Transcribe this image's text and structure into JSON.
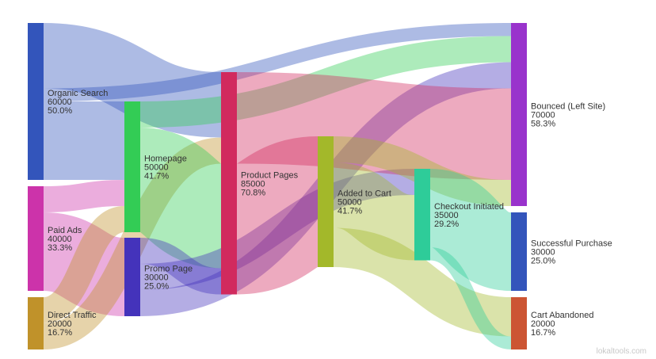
{
  "chart_data": {
    "type": "sankey",
    "nodes": [
      {
        "id": "organic",
        "name": "Organic Search",
        "value": 60000,
        "pct": "50.0%",
        "color": "#3355bb",
        "stage": 0
      },
      {
        "id": "paid",
        "name": "Paid Ads",
        "value": 40000,
        "pct": "33.3%",
        "color": "#cc33aa",
        "stage": 0
      },
      {
        "id": "direct",
        "name": "Direct Traffic",
        "value": 20000,
        "pct": "16.7%",
        "color": "#c0922a",
        "stage": 0
      },
      {
        "id": "home",
        "name": "Homepage",
        "value": 50000,
        "pct": "41.7%",
        "color": "#33cc55",
        "stage": 1
      },
      {
        "id": "promo",
        "name": "Promo Page",
        "value": 30000,
        "pct": "25.0%",
        "color": "#4433bb",
        "stage": 1
      },
      {
        "id": "product",
        "name": "Product Pages",
        "value": 85000,
        "pct": "70.8%",
        "color": "#d12a5e",
        "stage": 2
      },
      {
        "id": "cart",
        "name": "Added to Cart",
        "value": 50000,
        "pct": "41.7%",
        "color": "#a3b82a",
        "stage": 3
      },
      {
        "id": "checkout",
        "name": "Checkout Initiated",
        "value": 35000,
        "pct": "29.2%",
        "color": "#2ecc99",
        "stage": 4
      },
      {
        "id": "bounced",
        "name": "Bounced (Left Site)",
        "value": 70000,
        "pct": "58.3%",
        "color": "#9933cc",
        "stage": 5
      },
      {
        "id": "purchase",
        "name": "Successful Purchase",
        "value": 30000,
        "pct": "25.0%",
        "color": "#3355bb",
        "stage": 5
      },
      {
        "id": "abandoned",
        "name": "Cart Abandoned",
        "value": 20000,
        "pct": "16.7%",
        "color": "#cc5533",
        "stage": 5
      }
    ],
    "links": [
      {
        "source": "organic",
        "target": "product",
        "value": 25000
      },
      {
        "source": "organic",
        "target": "bounced",
        "value": 5000
      },
      {
        "source": "organic",
        "target": "home",
        "value": 30000
      },
      {
        "source": "paid",
        "target": "home",
        "value": 10000
      },
      {
        "source": "paid",
        "target": "promo",
        "value": 30000
      },
      {
        "source": "direct",
        "target": "home",
        "value": 10000
      },
      {
        "source": "direct",
        "target": "product",
        "value": 10000
      },
      {
        "source": "home",
        "target": "bounced",
        "value": 10000
      },
      {
        "source": "home",
        "target": "product",
        "value": 40000
      },
      {
        "source": "promo",
        "target": "product",
        "value": 10000
      },
      {
        "source": "promo",
        "target": "checkout",
        "value": 10000
      },
      {
        "source": "promo",
        "target": "bounced",
        "value": 10000
      },
      {
        "source": "product",
        "target": "bounced",
        "value": 35000
      },
      {
        "source": "product",
        "target": "cart",
        "value": 50000
      },
      {
        "source": "cart",
        "target": "bounced",
        "value": 10000
      },
      {
        "source": "cart",
        "target": "checkout",
        "value": 25000
      },
      {
        "source": "cart",
        "target": "abandoned",
        "value": 15000
      },
      {
        "source": "checkout",
        "target": "purchase",
        "value": 30000
      },
      {
        "source": "checkout",
        "target": "abandoned",
        "value": 5000
      }
    ]
  },
  "watermark": "lokaltools.com"
}
